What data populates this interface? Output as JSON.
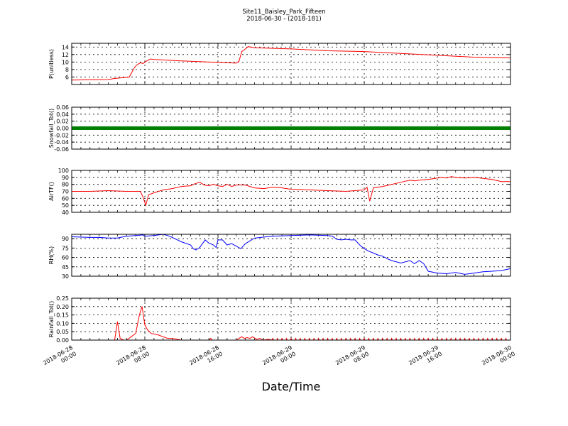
{
  "figure": {
    "title_line1": "Site11_Baisley_Park_Fifteen",
    "title_line2": "2018-06-30 - (2018-181)",
    "xlabel": "Date/Time",
    "x_tick_labels": [
      [
        "2018-06-28",
        "00:00"
      ],
      [
        "2018-06-28",
        "08:00"
      ],
      [
        "2018-06-28",
        "16:00"
      ],
      [
        "2018-06-29",
        "00:00"
      ],
      [
        "2018-06-29",
        "08:00"
      ],
      [
        "2018-06-29",
        "16:00"
      ],
      [
        "2018-06-30",
        "00:00"
      ]
    ]
  },
  "chart_data": [
    {
      "type": "line",
      "ylabel": "P(unitless)",
      "ylim": [
        4,
        15
      ],
      "yticks": [
        6,
        8,
        10,
        12,
        14
      ],
      "ytick_labels": [
        "6",
        "8",
        "10",
        "12",
        "14"
      ],
      "grid": true,
      "series": [
        {
          "color": "#ff0000",
          "x": [
            0,
            4,
            4.6,
            5.5,
            6.3,
            6.8,
            7.1,
            7.5,
            7.8,
            8.2,
            8.6,
            9,
            12,
            16,
            18,
            18.3,
            18.6,
            18.9,
            19.3,
            20,
            24,
            28,
            32,
            36,
            40,
            44,
            48
          ],
          "y": [
            5.2,
            5.3,
            5.6,
            5.8,
            6.0,
            8.3,
            9.2,
            9.8,
            9.6,
            10.3,
            10.8,
            10.7,
            10.3,
            9.9,
            9.7,
            10.2,
            12.8,
            13.3,
            14.1,
            13.8,
            13.5,
            13.0,
            12.8,
            12.3,
            11.8,
            11.3,
            11.1
          ]
        }
      ]
    },
    {
      "type": "line",
      "ylabel": "Snowfall_Tot()",
      "ylim": [
        -0.06,
        0.06
      ],
      "yticks": [
        -0.06,
        -0.04,
        -0.02,
        0.0,
        0.02,
        0.04,
        0.06
      ],
      "ytick_labels": [
        "-0.06",
        "-0.04",
        "-0.02",
        "0.00",
        "0.02",
        "0.04",
        "0.06"
      ],
      "grid": true,
      "series": [
        {
          "color": "#008000",
          "x": [
            0,
            48
          ],
          "y": [
            0,
            0
          ]
        }
      ]
    },
    {
      "type": "line",
      "ylabel": "AirTF()",
      "ylim": [
        40,
        100
      ],
      "yticks": [
        40,
        50,
        60,
        70,
        80,
        90,
        100
      ],
      "ytick_labels": [
        "40",
        "50",
        "60",
        "70",
        "80",
        "90",
        "100"
      ],
      "grid": true,
      "series": [
        {
          "color": "#ff0000",
          "x": [
            0,
            2,
            4,
            6,
            7.5,
            7.8,
            8.1,
            8.4,
            9,
            10,
            11,
            12,
            13,
            13.5,
            14,
            14.5,
            15,
            15.5,
            16,
            16.5,
            17,
            17.5,
            18,
            19,
            20,
            21,
            22,
            23,
            24,
            26,
            28,
            30,
            31,
            32,
            32.3,
            32.6,
            33,
            34,
            35,
            36,
            37,
            37.5,
            38,
            39,
            40,
            40.5,
            41,
            41.5,
            42,
            43,
            44,
            46,
            47,
            48
          ],
          "y": [
            70,
            70,
            71,
            70,
            70,
            62,
            50,
            65,
            68,
            72,
            74,
            77,
            78,
            81,
            83,
            79,
            78,
            80,
            78,
            77,
            80,
            77,
            79,
            79,
            75,
            74,
            76,
            75,
            73,
            72,
            71,
            70,
            71,
            72,
            76,
            56,
            75,
            77,
            80,
            83,
            86,
            85,
            86,
            87,
            89,
            90,
            89,
            91,
            90,
            89,
            90,
            87,
            84,
            84
          ]
        }
      ]
    },
    {
      "type": "line",
      "ylabel": "RH(%)",
      "ylim": [
        30,
        97
      ],
      "yticks": [
        30,
        45,
        60,
        75,
        90
      ],
      "ytick_labels": [
        "30",
        "45",
        "60",
        "75",
        "90"
      ],
      "grid": true,
      "series": [
        {
          "color": "#0000ff",
          "x": [
            0,
            2,
            3,
            4,
            5,
            6,
            7,
            7.8,
            8,
            9,
            9.5,
            10,
            10.5,
            11,
            12,
            13,
            13.3,
            13.6,
            14,
            14.6,
            15,
            15.5,
            15.8,
            16,
            16.5,
            17,
            17.5,
            18,
            18.5,
            19,
            20,
            22,
            24,
            26,
            28,
            28.5,
            29,
            29.5,
            30,
            30.5,
            31,
            31.5,
            32,
            32.5,
            33,
            33.5,
            34,
            34.5,
            35,
            36,
            37,
            37.5,
            38,
            38.5,
            39,
            40,
            41,
            42,
            43,
            44,
            45,
            46,
            47,
            48
          ],
          "y": [
            93,
            92,
            92,
            91,
            91,
            94,
            95,
            96,
            94,
            95,
            96,
            97,
            95,
            92,
            85,
            80,
            74,
            72,
            76,
            88,
            83,
            80,
            76,
            88,
            88,
            80,
            82,
            78,
            74,
            82,
            91,
            94,
            95,
            96,
            95,
            94,
            89,
            88,
            89,
            88,
            88,
            80,
            74,
            70,
            67,
            64,
            62,
            58,
            55,
            51,
            55,
            50,
            55,
            50,
            38,
            35,
            34,
            36,
            33,
            35,
            37,
            38,
            39,
            42
          ]
        }
      ]
    },
    {
      "type": "line",
      "ylabel": "Rainfall_Tot()",
      "ylim": [
        0,
        0.25
      ],
      "yticks": [
        0.0,
        0.05,
        0.1,
        0.15,
        0.2,
        0.25
      ],
      "ytick_labels": [
        "0.00",
        "0.05",
        "0.10",
        "0.15",
        "0.20",
        "0.25"
      ],
      "grid": true,
      "series": [
        {
          "color": "#ff0000",
          "x": [
            0,
            4.7,
            5.0,
            5.3,
            5.7,
            6,
            6.5,
            7,
            7.4,
            7.7,
            8,
            8.3,
            8.7,
            9.1,
            9.5,
            10,
            10.5,
            11,
            11.5,
            12,
            15,
            15.2,
            15.4,
            18,
            18.3,
            18.6,
            18.9,
            19.2,
            19.5,
            19.8,
            20.2,
            20.6,
            21,
            21.5,
            22,
            48
          ],
          "y": [
            0,
            0,
            0.11,
            0.01,
            0.0,
            0.0,
            0.02,
            0.04,
            0.15,
            0.2,
            0.09,
            0.06,
            0.04,
            0.035,
            0.03,
            0.02,
            0.01,
            0.01,
            0.005,
            0,
            0,
            0.01,
            0,
            0,
            0.01,
            0.02,
            0.01,
            0.015,
            0.01,
            0.02,
            0.005,
            0.01,
            0,
            0.005,
            0,
            0
          ]
        }
      ],
      "spike_markers": {
        "x": [
          22,
          23,
          24,
          25,
          26,
          27,
          28,
          29,
          30,
          31,
          32,
          33,
          34,
          35,
          36,
          37,
          38,
          39,
          40,
          41,
          42,
          43,
          44,
          45,
          46,
          47
        ],
        "y": 0.01
      }
    }
  ]
}
